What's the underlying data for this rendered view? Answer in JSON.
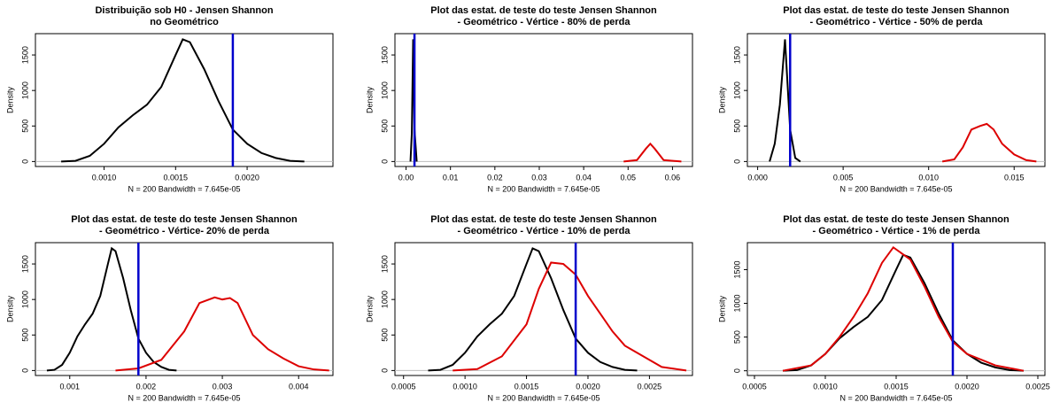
{
  "chart_data": [
    {
      "type": "line",
      "title": [
        "Distribuição sob H0 - Jensen Shannon",
        "no Geométrico"
      ],
      "ylabel": "Density",
      "xlabel": "N = 200   Bandwidth = 7.645e-05",
      "xlim": [
        0.00052,
        0.0026
      ],
      "ylim": [
        -70,
        1800
      ],
      "xticks": [
        {
          "value": 0.001,
          "label": "0.0010"
        },
        {
          "value": 0.0015,
          "label": "0.0015"
        },
        {
          "value": 0.002,
          "label": "0.0020"
        }
      ],
      "yticks": [
        0,
        500,
        1000,
        1500
      ],
      "vline": {
        "value": 0.0019,
        "color": "#0000cc"
      },
      "series": [
        {
          "color": "#000000",
          "x": [
            0.0007,
            0.0008,
            0.0009,
            0.001,
            0.0011,
            0.0012,
            0.0013,
            0.0014,
            0.0015,
            0.00155,
            0.0016,
            0.0017,
            0.0018,
            0.0019,
            0.002,
            0.0021,
            0.0022,
            0.0023,
            0.0024
          ],
          "values": [
            0,
            10,
            80,
            250,
            480,
            650,
            800,
            1050,
            1500,
            1720,
            1680,
            1300,
            850,
            450,
            250,
            120,
            50,
            10,
            0
          ]
        }
      ]
    },
    {
      "type": "line",
      "title": [
        "Plot das estat. de teste do teste Jensen Shannon",
        "- Geométrico - Vértice - 80% de perda"
      ],
      "ylabel": "Density",
      "xlabel": "N = 200   Bandwidth = 7.645e-05",
      "xlim": [
        -0.0025,
        0.0645
      ],
      "ylim": [
        -70,
        1800
      ],
      "xticks": [
        {
          "value": 0,
          "label": "0.00"
        },
        {
          "value": 0.01,
          "label": "0.01"
        },
        {
          "value": 0.02,
          "label": "0.02"
        },
        {
          "value": 0.03,
          "label": "0.03"
        },
        {
          "value": 0.04,
          "label": "0.04"
        },
        {
          "value": 0.05,
          "label": "0.05"
        },
        {
          "value": 0.06,
          "label": "0.06"
        }
      ],
      "yticks": [
        0,
        500,
        1000,
        1500
      ],
      "vline": {
        "value": 0.0019,
        "color": "#0000cc"
      },
      "series": [
        {
          "color": "#000000",
          "x": [
            0.001,
            0.0013,
            0.0016,
            0.0019,
            0.0024
          ],
          "values": [
            0,
            400,
            1720,
            450,
            0
          ]
        },
        {
          "color": "#dd0000",
          "x": [
            0.049,
            0.052,
            0.054,
            0.055,
            0.056,
            0.058,
            0.062
          ],
          "values": [
            0,
            20,
            180,
            250,
            180,
            20,
            0
          ]
        }
      ]
    },
    {
      "type": "line",
      "title": [
        "Plot das estat. de teste do teste Jensen Shannon",
        "- Geométrico - Vértice - 50% de perda"
      ],
      "ylabel": "Density",
      "xlabel": "N = 200   Bandwidth = 7.645e-05",
      "xlim": [
        -0.0006,
        0.0168
      ],
      "ylim": [
        -70,
        1800
      ],
      "xticks": [
        {
          "value": 0,
          "label": "0.000"
        },
        {
          "value": 0.005,
          "label": "0.005"
        },
        {
          "value": 0.01,
          "label": "0.010"
        },
        {
          "value": 0.015,
          "label": "0.015"
        }
      ],
      "yticks": [
        0,
        500,
        1000,
        1500
      ],
      "vline": {
        "value": 0.0019,
        "color": "#0000cc"
      },
      "series": [
        {
          "color": "#000000",
          "x": [
            0.0007,
            0.001,
            0.0013,
            0.0016,
            0.0019,
            0.0022,
            0.0025
          ],
          "values": [
            0,
            250,
            800,
            1720,
            450,
            50,
            0
          ]
        },
        {
          "color": "#dd0000",
          "x": [
            0.0108,
            0.0115,
            0.012,
            0.0125,
            0.013,
            0.0134,
            0.0138,
            0.0143,
            0.015,
            0.0157,
            0.0163
          ],
          "values": [
            0,
            30,
            200,
            450,
            500,
            530,
            450,
            250,
            100,
            20,
            0
          ]
        }
      ]
    },
    {
      "type": "line",
      "title": [
        "Plot das estat. de teste do teste Jensen Shannon",
        "- Geométrico - Vértice- 20% de perda"
      ],
      "ylabel": "Density",
      "xlabel": "N = 200   Bandwidth = 7.645e-05",
      "xlim": [
        0.00055,
        0.00445
      ],
      "ylim": [
        -70,
        1800
      ],
      "xticks": [
        {
          "value": 0.001,
          "label": "0.001"
        },
        {
          "value": 0.002,
          "label": "0.002"
        },
        {
          "value": 0.003,
          "label": "0.003"
        },
        {
          "value": 0.004,
          "label": "0.004"
        }
      ],
      "yticks": [
        0,
        500,
        1000,
        1500
      ],
      "vline": {
        "value": 0.0019,
        "color": "#0000cc"
      },
      "series": [
        {
          "color": "#000000",
          "x": [
            0.0007,
            0.0008,
            0.0009,
            0.001,
            0.0011,
            0.0012,
            0.0013,
            0.0014,
            0.0015,
            0.00155,
            0.0016,
            0.0017,
            0.0018,
            0.0019,
            0.002,
            0.0021,
            0.0022,
            0.0023,
            0.0024
          ],
          "values": [
            0,
            10,
            80,
            250,
            480,
            650,
            800,
            1050,
            1500,
            1720,
            1680,
            1300,
            850,
            450,
            250,
            120,
            50,
            10,
            0
          ]
        },
        {
          "color": "#dd0000",
          "x": [
            0.0016,
            0.0019,
            0.0022,
            0.0025,
            0.0027,
            0.0029,
            0.003,
            0.0031,
            0.0032,
            0.0034,
            0.0036,
            0.0038,
            0.004,
            0.0042,
            0.0044
          ],
          "values": [
            0,
            30,
            150,
            550,
            950,
            1030,
            1000,
            1020,
            950,
            500,
            300,
            170,
            60,
            15,
            0
          ]
        }
      ]
    },
    {
      "type": "line",
      "title": [
        "Plot das estat. de teste do teste Jensen Shannon",
        "- Geométrico - Vértice - 10% de perda"
      ],
      "ylabel": "Density",
      "xlabel": "N = 200   Bandwidth = 7.645e-05",
      "xlim": [
        0.00043,
        0.00285
      ],
      "ylim": [
        -70,
        1800
      ],
      "xticks": [
        {
          "value": 0.0005,
          "label": "0.0005"
        },
        {
          "value": 0.001,
          "label": "0.0010"
        },
        {
          "value": 0.0015,
          "label": "0.0015"
        },
        {
          "value": 0.002,
          "label": "0.0020"
        },
        {
          "value": 0.0025,
          "label": "0.0025"
        }
      ],
      "yticks": [
        0,
        500,
        1000,
        1500
      ],
      "vline": {
        "value": 0.0019,
        "color": "#0000cc"
      },
      "series": [
        {
          "color": "#000000",
          "x": [
            0.0007,
            0.0008,
            0.0009,
            0.001,
            0.0011,
            0.0012,
            0.0013,
            0.0014,
            0.0015,
            0.00155,
            0.0016,
            0.0017,
            0.0018,
            0.0019,
            0.002,
            0.0021,
            0.0022,
            0.0023,
            0.0024
          ],
          "values": [
            0,
            10,
            80,
            250,
            480,
            650,
            800,
            1050,
            1500,
            1720,
            1680,
            1300,
            850,
            450,
            250,
            120,
            50,
            10,
            0
          ]
        },
        {
          "color": "#dd0000",
          "x": [
            0.0009,
            0.0011,
            0.0013,
            0.0015,
            0.0016,
            0.0017,
            0.0018,
            0.0019,
            0.002,
            0.0021,
            0.0022,
            0.0023,
            0.0024,
            0.0025,
            0.0026,
            0.0028
          ],
          "values": [
            0,
            20,
            200,
            650,
            1150,
            1520,
            1500,
            1350,
            1050,
            800,
            550,
            350,
            250,
            150,
            50,
            0
          ]
        }
      ]
    },
    {
      "type": "line",
      "title": [
        "Plot das estat. de teste do teste Jensen Shannon",
        "- Geométrico - Vértice - 1% de perda"
      ],
      "ylabel": "Density",
      "xlabel": "N = 200   Bandwidth = 7.645e-05",
      "xlim": [
        0.00045,
        0.00255
      ],
      "ylim": [
        -70,
        1900
      ],
      "xticks": [
        {
          "value": 0.0005,
          "label": "0.0005"
        },
        {
          "value": 0.001,
          "label": "0.0010"
        },
        {
          "value": 0.0015,
          "label": "0.0015"
        },
        {
          "value": 0.002,
          "label": "0.0020"
        },
        {
          "value": 0.0025,
          "label": "0.0025"
        }
      ],
      "yticks": [
        0,
        500,
        1000,
        1500
      ],
      "vline": {
        "value": 0.0019,
        "color": "#0000cc"
      },
      "series": [
        {
          "color": "#000000",
          "x": [
            0.0007,
            0.0008,
            0.0009,
            0.001,
            0.0011,
            0.0012,
            0.0013,
            0.0014,
            0.0015,
            0.00155,
            0.0016,
            0.0017,
            0.0018,
            0.0019,
            0.002,
            0.0021,
            0.0022,
            0.0023,
            0.0024
          ],
          "values": [
            0,
            10,
            80,
            250,
            480,
            650,
            800,
            1050,
            1500,
            1720,
            1680,
            1300,
            850,
            450,
            250,
            120,
            50,
            10,
            0
          ]
        },
        {
          "color": "#dd0000",
          "x": [
            0.0007,
            0.0009,
            0.001,
            0.0011,
            0.0012,
            0.0013,
            0.0014,
            0.00148,
            0.0016,
            0.0017,
            0.0018,
            0.0019,
            0.002,
            0.0022,
            0.0024
          ],
          "values": [
            0,
            80,
            250,
            500,
            800,
            1150,
            1600,
            1830,
            1650,
            1250,
            800,
            430,
            250,
            80,
            0
          ]
        }
      ]
    }
  ]
}
